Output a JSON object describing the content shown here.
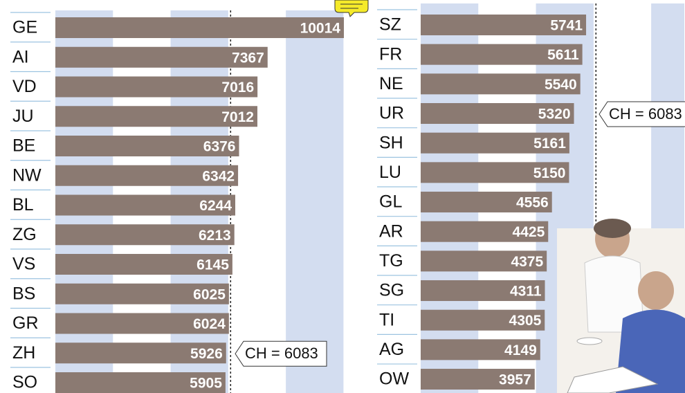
{
  "chart_data": [
    {
      "type": "bar",
      "orientation": "horizontal",
      "color": "#8b7a72",
      "band_color": "#d3ddf0",
      "categories": [
        "GE",
        "AI",
        "VD",
        "JU",
        "BE",
        "NW",
        "BL",
        "ZG",
        "VS",
        "BS",
        "GR",
        "ZH",
        "SO"
      ],
      "values": [
        10014,
        7367,
        7016,
        7012,
        6376,
        6342,
        6244,
        6213,
        6145,
        6025,
        6024,
        5926,
        5905
      ],
      "xlim": [
        0,
        10000
      ],
      "xticks": [
        0,
        2000,
        4000,
        6000,
        8000,
        10000
      ],
      "reference": {
        "value": 6083,
        "label": "CH = 6083"
      }
    },
    {
      "type": "bar",
      "orientation": "horizontal",
      "color": "#8b7a72",
      "band_color": "#d3ddf0",
      "categories": [
        "SZ",
        "FR",
        "NE",
        "UR",
        "SH",
        "LU",
        "GL",
        "AR",
        "TG",
        "SG",
        "TI",
        "AG",
        "OW"
      ],
      "values": [
        5741,
        5611,
        5540,
        5320,
        5161,
        5150,
        4556,
        4425,
        4375,
        4311,
        4305,
        4149,
        3957
      ],
      "xlim": [
        0,
        9150
      ],
      "xticks": [
        0,
        2000,
        4000,
        6000,
        8000
      ],
      "reference": {
        "value": 6083,
        "label": "CH = 6083"
      }
    }
  ]
}
